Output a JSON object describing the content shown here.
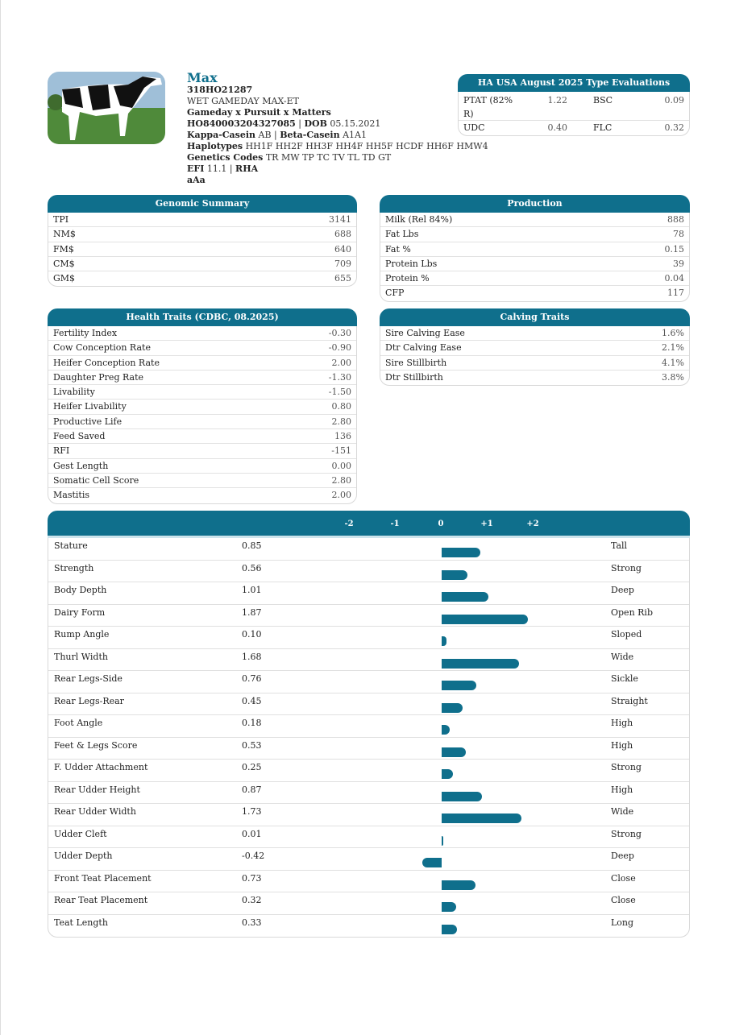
{
  "animal": {
    "name": "Max",
    "code": "318HO21287",
    "reg_name": "WET GAMEDAY MAX-ET",
    "pedigree": "Gameday x Pursuit x Matters",
    "id": "HO840003204327085",
    "dob_label": "DOB",
    "dob": "05.15.2021",
    "kappa_label": "Kappa-Casein",
    "kappa": "AB",
    "beta_label": "Beta-Casein",
    "beta": "A1A1",
    "haplo_label": "Haplotypes",
    "haplo": "HH1F HH2F HH3F HH4F HH5F HCDF HH6F HMW4",
    "codes_label": "Genetics Codes",
    "codes": "TR MW TP TC TV TL TD GT",
    "efi_label": "EFI",
    "efi": "11.1",
    "rha": "RHA",
    "extra": "aAa"
  },
  "type_eval": {
    "title": "HA USA August 2025 Type Evaluations",
    "rows": [
      [
        "PTAT (82% R)",
        "1.22",
        "BSC",
        "0.09"
      ],
      [
        "UDC",
        "0.40",
        "FLC",
        "0.32"
      ]
    ]
  },
  "genomic": {
    "title": "Genomic Summary",
    "rows": [
      [
        "TPI",
        "3141"
      ],
      [
        "NM$",
        "688"
      ],
      [
        "FM$",
        "640"
      ],
      [
        "CM$",
        "709"
      ],
      [
        "GM$",
        "655"
      ]
    ]
  },
  "production": {
    "title": "Production",
    "rows": [
      [
        "Milk (Rel 84%)",
        "888"
      ],
      [
        "Fat Lbs",
        "78"
      ],
      [
        "Fat %",
        "0.15"
      ],
      [
        "Protein Lbs",
        "39"
      ],
      [
        "Protein %",
        "0.04"
      ],
      [
        "CFP",
        "117"
      ]
    ]
  },
  "health": {
    "title": "Health Traits (CDBC, 08.2025)",
    "rows": [
      [
        "Fertility Index",
        "-0.30"
      ],
      [
        "Cow Conception Rate",
        "-0.90"
      ],
      [
        "Heifer Conception Rate",
        "2.00"
      ],
      [
        "Daughter Preg Rate",
        "-1.30"
      ],
      [
        "Livability",
        "-1.50"
      ],
      [
        "Heifer Livability",
        "0.80"
      ],
      [
        "Productive Life",
        "2.80"
      ],
      [
        "Feed Saved",
        "136"
      ],
      [
        "RFI",
        "-151"
      ],
      [
        "Gest Length",
        "0.00"
      ],
      [
        "Somatic Cell Score",
        "2.80"
      ],
      [
        "Mastitis",
        "2.00"
      ]
    ]
  },
  "calving": {
    "title": "Calving Traits",
    "rows": [
      [
        "Sire Calving Ease",
        "1.6%"
      ],
      [
        "Dtr Calving Ease",
        "2.1%"
      ],
      [
        "Sire Stillbirth",
        "4.1%"
      ],
      [
        "Dtr Stillbirth",
        "3.8%"
      ]
    ]
  },
  "chart_data": {
    "type": "bar",
    "orientation": "horizontal",
    "ticks": [
      "-2",
      "-1",
      "0",
      "+1",
      "+2"
    ],
    "xlim": [
      -2,
      2
    ],
    "color": "#0f6f8c",
    "categories": [
      "Stature",
      "Strength",
      "Body Depth",
      "Dairy Form",
      "Rump Angle",
      "Thurl Width",
      "Rear Legs-Side",
      "Rear Legs-Rear",
      "Foot Angle",
      "Feet & Legs Score",
      "F. Udder Attachment",
      "Rear Udder Height",
      "Rear Udder Width",
      "Udder Cleft",
      "Udder Depth",
      "Front Teat Placement",
      "Rear Teat Placement",
      "Teat Length"
    ],
    "values": [
      "0.85",
      "0.56",
      "1.01",
      "1.87",
      "0.10",
      "1.68",
      "0.76",
      "0.45",
      "0.18",
      "0.53",
      "0.25",
      "0.87",
      "1.73",
      "0.01",
      "-0.42",
      "0.73",
      "0.32",
      "0.33"
    ],
    "descriptors": [
      "Tall",
      "Strong",
      "Deep",
      "Open Rib",
      "Sloped",
      "Wide",
      "Sickle",
      "Straight",
      "High",
      "High",
      "Strong",
      "High",
      "Wide",
      "Strong",
      "Deep",
      "Close",
      "Close",
      "Long"
    ]
  }
}
